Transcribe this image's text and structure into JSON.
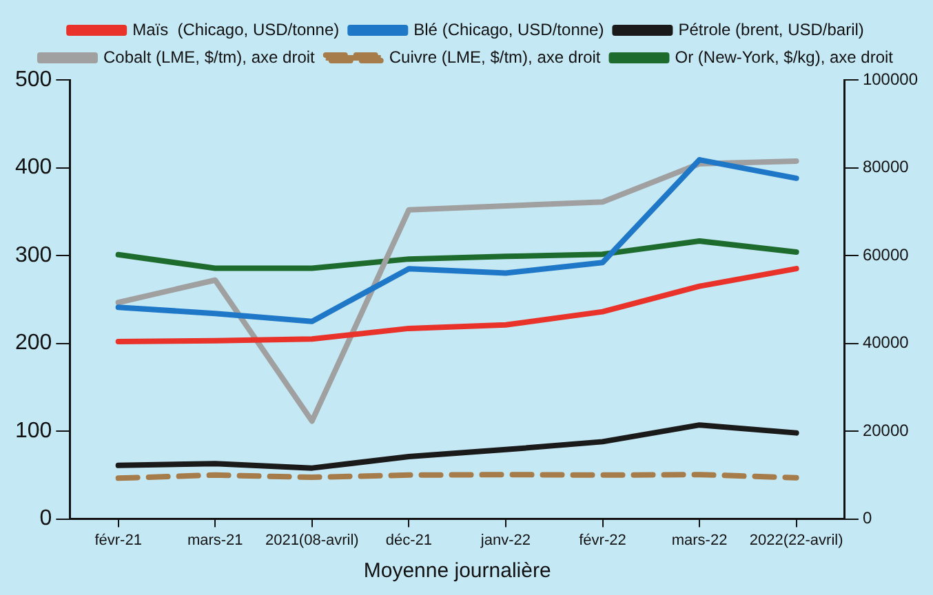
{
  "chart_data": {
    "type": "line",
    "xlabel": "Moyenne journalière",
    "categories": [
      "févr-21",
      "mars-21",
      "2021(08-avril)",
      "déc-21",
      "janv-22",
      "févr-22",
      "mars-22",
      "2022(22-avril)"
    ],
    "ylim": [
      0,
      500
    ],
    "yticks": [
      0,
      100,
      200,
      300,
      400,
      500
    ],
    "y2lim": [
      0,
      100000
    ],
    "y2ticks": [
      0,
      20000,
      40000,
      60000,
      80000,
      100000
    ],
    "grid": false,
    "legend": "top",
    "marker": "none",
    "series": [
      {
        "name": "Maïs  (Chicago, USD/tonne)",
        "color": "#e8322a",
        "values": [
          202,
          203,
          205,
          217,
          221,
          236,
          265,
          285
        ]
      },
      {
        "name": "Blé (Chicago, USD/tonne)",
        "color": "#1f77c8",
        "values": [
          241,
          234,
          225,
          285,
          280,
          292,
          409,
          388
        ]
      },
      {
        "name": "Pétrole (brent, USD/baril)",
        "color": "#1a1a1a",
        "values": [
          61,
          63,
          58,
          71,
          79,
          88,
          107,
          98
        ]
      },
      {
        "name": "Cobalt (LME, $/tm), axe droit",
        "color": "#a0a0a0",
        "axis": "y2",
        "values": [
          49300,
          54400,
          22300,
          70400,
          71300,
          72200,
          80900,
          81500
        ]
      },
      {
        "name": "Cuivre (LME, $/tm), axe droit",
        "color": "#a67c4a",
        "axis": "y2",
        "line_style": "dashed",
        "values": [
          9300,
          10000,
          9500,
          10000,
          10100,
          10000,
          10100,
          9400
        ]
      },
      {
        "name": "Or (New-York, $/kg), axe droit",
        "color": "#1e6b2e",
        "axis": "y2",
        "values": [
          60200,
          57100,
          57100,
          59200,
          59800,
          60300,
          63300,
          60800
        ]
      }
    ]
  }
}
